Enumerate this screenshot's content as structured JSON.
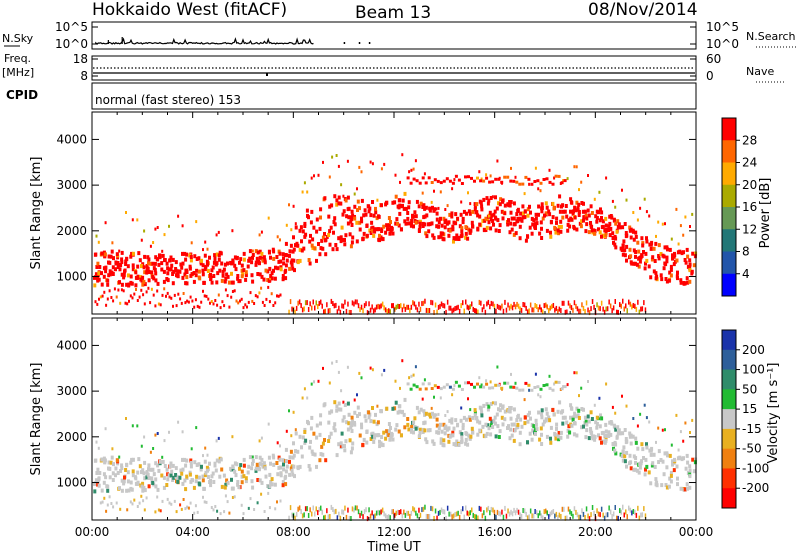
{
  "header": {
    "station_title": "Hokkaido West (fitACF)",
    "beam_label": "Beam 13",
    "date_label": "08/Nov/2014"
  },
  "noise_panel": {
    "left_label": "N.Sky",
    "right_label": "N.Search",
    "left_ticks": [
      "10^5",
      "10^0"
    ],
    "right_ticks": [
      "10^5",
      "10^0"
    ]
  },
  "freq_panel": {
    "left_label_1": "Freq.",
    "left_label_2": "[MHz]",
    "right_label": "Nave",
    "left_ticks": [
      "18",
      "8"
    ],
    "right_ticks": [
      "60",
      "0"
    ]
  },
  "cpid_panel": {
    "label": "CPID",
    "text": "normal (fast stereo) 153"
  },
  "chart_data": [
    {
      "type": "heatmap",
      "name": "power",
      "ylabel": "Slant Range [km]",
      "xlabel": "",
      "ylim": [
        180,
        4600
      ],
      "yticks": [
        "4000",
        "3000",
        "2000",
        "1000"
      ],
      "yticks_values": [
        4000,
        3000,
        2000,
        1000
      ],
      "colorbar": {
        "label": "Power [dB]",
        "ticks": [
          "28",
          "24",
          "20",
          "16",
          "12",
          "8",
          "4"
        ],
        "colors": [
          "#ff0000",
          "#ff6600",
          "#ffaa00",
          "#aaaa00",
          "#669955",
          "#227777",
          "#2255aa",
          "#0000ff"
        ]
      }
    },
    {
      "type": "heatmap",
      "name": "velocity",
      "ylabel": "Slant Range [km]",
      "ylim": [
        180,
        4600
      ],
      "yticks": [
        "4000",
        "3000",
        "2000",
        "1000"
      ],
      "yticks_values": [
        4000,
        3000,
        2000,
        1000
      ],
      "colorbar": {
        "label": "Velocity [m s⁻¹]",
        "ticks": [
          "200",
          "100",
          "50",
          "15",
          "-15",
          "-50",
          "-100",
          "-200"
        ],
        "colors": [
          "#1a33aa",
          "#2e5f9a",
          "#2f8c6a",
          "#22bb33",
          "#c8c8c8",
          "#e8b020",
          "#f08010",
          "#ff3000",
          "#ff0000"
        ]
      }
    }
  ],
  "x_axis": {
    "label": "Time UT",
    "ticks": [
      "00:00",
      "04:00",
      "08:00",
      "12:00",
      "16:00",
      "20:00",
      "00:00"
    ],
    "tick_hours": [
      0,
      4,
      8,
      12,
      16,
      20,
      24
    ]
  },
  "echo_envelope": {
    "hours": [
      0,
      2,
      4,
      6,
      7.5,
      8.5,
      9.5,
      10.5,
      11.5,
      12.5,
      13.5,
      14.5,
      15.5,
      16.5,
      17.5,
      18.5,
      19.5,
      20.5,
      21.5,
      22.5,
      24
    ],
    "lower_km": [
      800,
      800,
      850,
      850,
      900,
      1200,
      1500,
      1700,
      1800,
      2100,
      1800,
      1700,
      2000,
      1900,
      1700,
      1900,
      2000,
      1800,
      1100,
      900,
      800
    ],
    "upper_km": [
      1600,
      1500,
      1500,
      1550,
      1600,
      2500,
      2800,
      2700,
      2600,
      2900,
      2500,
      2400,
      2800,
      2700,
      2500,
      2800,
      2600,
      2400,
      2000,
      1700,
      1600
    ]
  }
}
